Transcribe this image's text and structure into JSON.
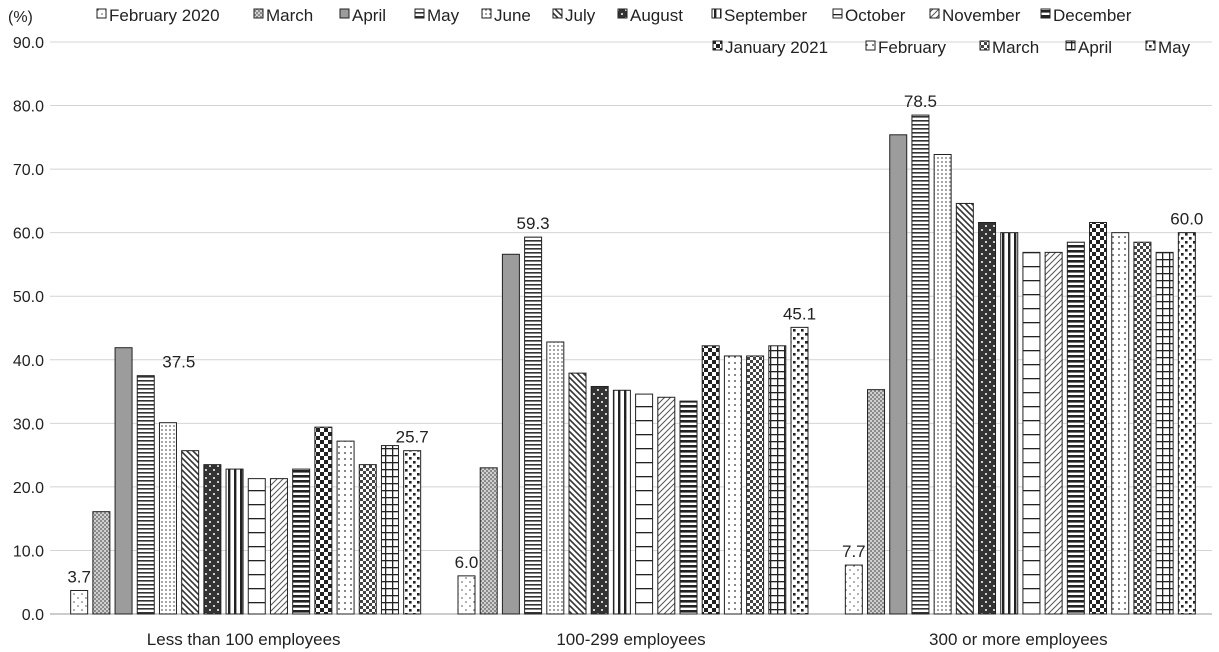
{
  "chart_data": {
    "type": "bar",
    "y_unit_label": "(%)",
    "ylim": [
      0,
      90
    ],
    "yticks": [
      "0.0",
      "10.0",
      "20.0",
      "30.0",
      "40.0",
      "50.0",
      "60.0",
      "70.0",
      "80.0",
      "90.0"
    ],
    "grid": "horizontal",
    "legend_position": "top",
    "categories": [
      "Less than 100 employees",
      "100-299 employees",
      "300 or more employees"
    ],
    "series": [
      {
        "name": "February 2020",
        "values": [
          3.7,
          6.0,
          7.7
        ]
      },
      {
        "name": "March",
        "values": [
          16.1,
          23.0,
          35.3
        ]
      },
      {
        "name": "April",
        "values": [
          41.9,
          56.6,
          75.4
        ]
      },
      {
        "name": "May",
        "values": [
          37.5,
          59.3,
          78.5
        ]
      },
      {
        "name": "June",
        "values": [
          30.1,
          42.8,
          72.3
        ]
      },
      {
        "name": "July",
        "values": [
          25.7,
          37.9,
          64.6
        ]
      },
      {
        "name": "August",
        "values": [
          23.5,
          35.8,
          61.6
        ]
      },
      {
        "name": "September",
        "values": [
          22.8,
          35.2,
          60.0
        ]
      },
      {
        "name": "October",
        "values": [
          21.3,
          34.6,
          56.9
        ]
      },
      {
        "name": "November",
        "values": [
          21.3,
          34.1,
          56.9
        ]
      },
      {
        "name": "December",
        "values": [
          22.8,
          33.5,
          58.5
        ]
      },
      {
        "name": "January 2021",
        "values": [
          29.4,
          42.2,
          61.6
        ]
      },
      {
        "name": "February",
        "values": [
          27.2,
          40.6,
          60.0
        ]
      },
      {
        "name": "March",
        "values": [
          23.5,
          40.6,
          58.5
        ]
      },
      {
        "name": "April",
        "values": [
          26.5,
          42.2,
          56.9
        ]
      },
      {
        "name": "May",
        "values": [
          25.7,
          45.1,
          60.0
        ]
      }
    ],
    "data_labels": [
      {
        "category": 0,
        "series": 0,
        "text": "3.7"
      },
      {
        "category": 0,
        "series": 3,
        "text": "37.5"
      },
      {
        "category": 0,
        "series": 15,
        "text": "25.7"
      },
      {
        "category": 1,
        "series": 0,
        "text": "6.0"
      },
      {
        "category": 1,
        "series": 3,
        "text": "59.3"
      },
      {
        "category": 1,
        "series": 15,
        "text": "45.1"
      },
      {
        "category": 2,
        "series": 0,
        "text": "7.7"
      },
      {
        "category": 2,
        "series": 3,
        "text": "78.5"
      },
      {
        "category": 2,
        "series": 15,
        "text": "60.0"
      }
    ]
  }
}
